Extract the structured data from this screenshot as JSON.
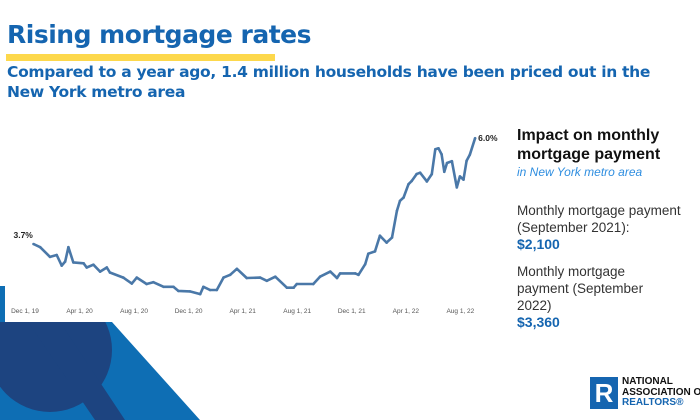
{
  "header": {
    "title": "Rising mortgage rates",
    "subtitle": "Compared to a year ago, 1.4 million households have been priced out in the New York metro area"
  },
  "colors": {
    "brand_blue": "#1565b0",
    "accent_yellow": "#fdd84c",
    "line": "#4a78a8",
    "navy": "#1d4480"
  },
  "panel": {
    "heading": "Impact on monthly mortgage payment",
    "subheading": "in New York metro area",
    "items": [
      {
        "label": "Monthly mortgage payment (September 2021):",
        "value": "$2,100"
      },
      {
        "label": "Monthly mortgage payment (September 2022)",
        "value": "$3,360"
      }
    ]
  },
  "logo": {
    "mark": "R",
    "line1": "NATIONAL",
    "line2": "ASSOCIATION OF",
    "line3": "REALTORS®"
  },
  "chart_data": {
    "type": "line",
    "title": "",
    "xlabel": "",
    "ylabel": "",
    "grid": false,
    "x_ticks": [
      "Dec 1, 19",
      "Apr 1, 20",
      "Aug 1, 20",
      "Dec 1, 20",
      "Apr 1, 21",
      "Aug 1, 21",
      "Dec 1, 21",
      "Apr 1, 22",
      "Aug 1, 22"
    ],
    "x_tick_dates": [
      "2019-12-01",
      "2020-04-01",
      "2020-08-01",
      "2020-12-01",
      "2021-04-01",
      "2021-08-01",
      "2021-12-01",
      "2022-04-01",
      "2022-08-01"
    ],
    "annotations": [
      {
        "label": "3.7%",
        "at": "start"
      },
      {
        "label": "6.0%",
        "at": "end"
      }
    ],
    "ylim": [
      2.5,
      6.1
    ],
    "series": [
      {
        "x": [
          "2019-12-20",
          "2020-01-04",
          "2020-01-26",
          "2020-02-10",
          "2020-02-21",
          "2020-02-29",
          "2020-03-07",
          "2020-03-18",
          "2020-04-10",
          "2020-04-17",
          "2020-05-02",
          "2020-05-17",
          "2020-06-01",
          "2020-06-08",
          "2020-07-08",
          "2020-07-27",
          "2020-08-07",
          "2020-08-29",
          "2020-09-13",
          "2020-10-06",
          "2020-10-28",
          "2020-11-08",
          "2020-12-04",
          "2020-12-27",
          "2021-01-03",
          "2021-01-18",
          "2021-02-02",
          "2021-02-17",
          "2021-03-04",
          "2021-03-19",
          "2021-04-10",
          "2021-05-10",
          "2021-05-25",
          "2021-06-13",
          "2021-07-09",
          "2021-07-24",
          "2021-07-31",
          "2021-09-06",
          "2021-09-21",
          "2021-10-14",
          "2021-10-29",
          "2021-11-05",
          "2021-12-09",
          "2021-12-16",
          "2021-12-31",
          "2022-01-07",
          "2022-01-22",
          "2022-02-02",
          "2022-02-17",
          "2022-03-01",
          "2022-03-12",
          "2022-03-19",
          "2022-03-27",
          "2022-04-07",
          "2022-04-14",
          "2022-04-25",
          "2022-05-03",
          "2022-05-18",
          "2022-05-29",
          "2022-06-06",
          "2022-06-13",
          "2022-06-20",
          "2022-06-26",
          "2022-07-02",
          "2022-07-13",
          "2022-07-24",
          "2022-07-31",
          "2022-08-08",
          "2022-08-15",
          "2022-08-22",
          "2022-09-03"
        ],
        "values": [
          3.7,
          3.63,
          3.42,
          3.46,
          3.23,
          3.32,
          3.63,
          3.3,
          3.28,
          3.19,
          3.25,
          3.1,
          3.19,
          3.08,
          2.97,
          2.84,
          2.97,
          2.83,
          2.87,
          2.77,
          2.77,
          2.68,
          2.67,
          2.61,
          2.77,
          2.7,
          2.7,
          2.97,
          3.03,
          3.16,
          2.96,
          2.97,
          2.9,
          2.99,
          2.75,
          2.75,
          2.83,
          2.83,
          2.99,
          3.1,
          2.96,
          3.06,
          3.06,
          3.03,
          3.26,
          3.49,
          3.54,
          3.88,
          3.73,
          3.84,
          4.42,
          4.64,
          4.71,
          5.0,
          5.07,
          5.22,
          5.25,
          5.06,
          5.22,
          5.76,
          5.78,
          5.65,
          5.27,
          5.46,
          5.5,
          4.93,
          5.17,
          5.1,
          5.51,
          5.64,
          6.0
        ]
      }
    ]
  }
}
